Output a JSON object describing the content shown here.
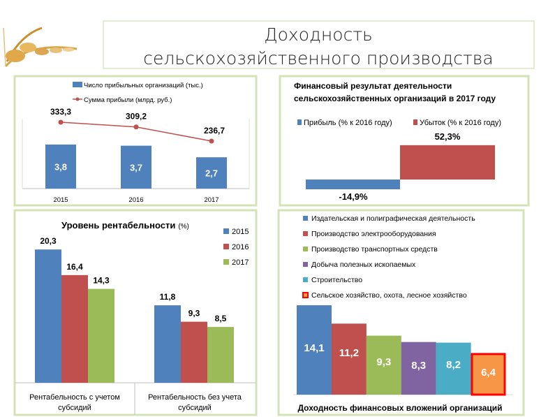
{
  "slide": {
    "title_line1": "Доходность",
    "title_line2": "сельскохозяйственного производства"
  },
  "colors": {
    "blue": "#4f81bd",
    "red": "#c0504d",
    "green": "#9bbb59",
    "purple": "#8064a2",
    "teal": "#4bacc6",
    "orange": "#f79646",
    "highlight_border": "#ff0000"
  },
  "chart_data": [
    {
      "type": "bar",
      "id": "profitable-orgs",
      "categories": [
        "2015",
        "2016",
        "2017"
      ],
      "series": [
        {
          "name": "Число прибыльных организаций (тыс.)",
          "kind": "bar",
          "values": [
            3.8,
            3.7,
            2.7
          ],
          "labels": [
            "3,8",
            "3,7",
            "2,7"
          ]
        },
        {
          "name": "Сумма прибыли (млрд. руб.)",
          "kind": "line",
          "values": [
            333.3,
            309.2,
            236.7
          ],
          "labels": [
            "333,3",
            "309,2",
            "236,7"
          ]
        }
      ],
      "legend": "top"
    },
    {
      "type": "bar",
      "id": "financial-result",
      "title": "Финансовый результат деятельности сельскохозяйственных организаций в 2017 году",
      "title_line1": "Финансовый результат деятельности",
      "title_line2": "сельскохозяйственных организаций в 2017 году",
      "series": [
        {
          "name": "Прибыль (% к 2016 году)",
          "values": [
            -14.9
          ],
          "labels": [
            "-14,9%"
          ]
        },
        {
          "name": "Убыток (% к 2016 году)",
          "values": [
            52.3
          ],
          "labels": [
            "52,3%"
          ]
        }
      ],
      "legend": "top"
    },
    {
      "type": "bar",
      "id": "profitability",
      "title": "Уровень рентабельности",
      "title_suffix": "(%)",
      "categories": [
        "Рентабельность с учетом субсидий",
        "Рентабельность без учета субсидий"
      ],
      "category_lines": [
        [
          "Рентабельность с учетом",
          "субсидий"
        ],
        [
          "Рентабельность без учета",
          "субсидий"
        ]
      ],
      "series": [
        {
          "name": "2015",
          "values": [
            20.3,
            11.8
          ],
          "labels": [
            "20,3",
            "11,8"
          ]
        },
        {
          "name": "2016",
          "values": [
            16.4,
            9.3
          ],
          "labels": [
            "16,4",
            "9,3"
          ]
        },
        {
          "name": "2017",
          "values": [
            14.3,
            8.5
          ],
          "labels": [
            "14,3",
            "8,5"
          ]
        }
      ],
      "legend": "top-right"
    },
    {
      "type": "bar",
      "id": "investment-returns",
      "title": "Доходность финансовых вложений организаций",
      "series": [
        {
          "name": "Издательская и полиграфическая деятельность",
          "values": [
            14.1
          ],
          "labels": [
            "14,1"
          ]
        },
        {
          "name": "Производство электрооборудования",
          "values": [
            11.2
          ],
          "labels": [
            "11,2"
          ]
        },
        {
          "name": "Производство транспортных средств",
          "values": [
            9.3
          ],
          "labels": [
            "9,3"
          ]
        },
        {
          "name": "Добыча полезных ископаемых",
          "values": [
            8.3
          ],
          "labels": [
            "8,3"
          ]
        },
        {
          "name": "Строительство",
          "values": [
            8.2
          ],
          "labels": [
            "8,2"
          ]
        },
        {
          "name": "Сельское хозяйство, охота, лесное хозяйство",
          "values": [
            6.4
          ],
          "labels": [
            "6,4"
          ],
          "highlighted": true
        }
      ],
      "legend": "top"
    }
  ]
}
